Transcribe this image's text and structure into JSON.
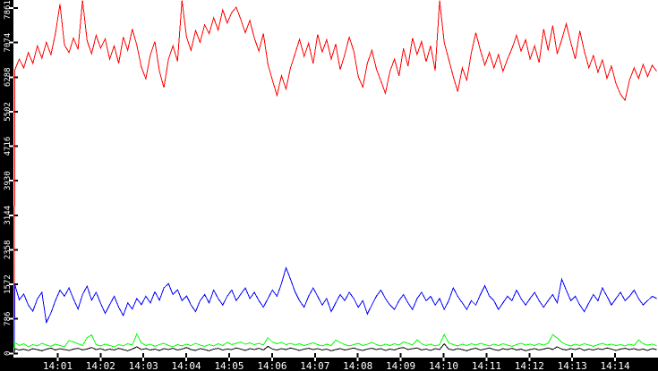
{
  "chart_data": {
    "type": "line",
    "title": "",
    "legend": false,
    "grid": false,
    "background_color": "#ffffff",
    "axis_bar_color": "#000000",
    "axis_text_color": "#ffffff",
    "x_axis": {
      "tick_labels": [
        "14:01",
        "14:02",
        "14:03",
        "14:04",
        "14:05",
        "14:06",
        "14:07",
        "14:08",
        "14:09",
        "14:10",
        "14:11",
        "14:12",
        "14:13",
        "14:14"
      ],
      "implied_range": [
        "14:00",
        "14:15"
      ]
    },
    "y_axis": {
      "tick_labels": [
        "0",
        "786",
        "1572",
        "2358",
        "3144",
        "3930",
        "4716",
        "5502",
        "6288",
        "7074",
        "7861"
      ],
      "tick_values": [
        0,
        786,
        1572,
        2358,
        3144,
        3930,
        4716,
        5502,
        6288,
        7074,
        7861
      ],
      "range": [
        0,
        8050
      ]
    },
    "series": [
      {
        "name": "red",
        "color": "#ff0000",
        "values": [
          0,
          6450,
          6700,
          6500,
          6850,
          6600,
          7000,
          6720,
          7080,
          6800,
          7280,
          7950,
          7020,
          6850,
          7180,
          6920,
          8040,
          7120,
          6820,
          7240,
          6950,
          7160,
          6700,
          7000,
          6600,
          7200,
          6900,
          7380,
          7020,
          6520,
          6250,
          6800,
          7100,
          6420,
          6050,
          6700,
          7000,
          6650,
          8040,
          7200,
          6900,
          7350,
          7080,
          7480,
          7280,
          7640,
          7360,
          7820,
          7520,
          7760,
          7880,
          7600,
          7300,
          7580,
          7180,
          6880,
          7280,
          6580,
          6220,
          5870,
          6320,
          6020,
          6500,
          6820,
          7150,
          6760,
          7060,
          6600,
          7260,
          6860,
          7140,
          6700,
          7040,
          6460,
          6800,
          7200,
          6880,
          6300,
          6060,
          6600,
          6900,
          6480,
          6200,
          5920,
          6420,
          6700,
          6320,
          6940,
          6540,
          7180,
          6800,
          7100,
          6640,
          7000,
          6440,
          8040,
          7080,
          6700,
          6300,
          5960,
          6500,
          6220,
          6840,
          7300,
          6900,
          6560,
          6850,
          6500,
          6800,
          6420,
          6700,
          6940,
          7240,
          6880,
          7140,
          6700,
          7000,
          6620,
          7380,
          6900,
          7460,
          6820,
          7140,
          7500,
          7080,
          6700,
          7340,
          6880,
          6500,
          6780,
          6400,
          6680,
          6260,
          6540,
          6140,
          5900,
          5760,
          6220,
          6500,
          6260,
          6580,
          6300,
          6560,
          6420
        ]
      },
      {
        "name": "blue",
        "color": "#0000ff",
        "values": [
          0,
          1570,
          1220,
          1350,
          1100,
          960,
          1240,
          1390,
          700,
          920,
          1200,
          1440,
          1300,
          1490,
          1240,
          1010,
          1340,
          1530,
          1210,
          1390,
          1140,
          910,
          1110,
          1300,
          1050,
          860,
          1150,
          1010,
          1250,
          1110,
          1300,
          1150,
          1400,
          1210,
          1490,
          1590,
          1340,
          1450,
          1200,
          1310,
          1100,
          950,
          1200,
          1340,
          1150,
          1440,
          1250,
          1100,
          1300,
          1440,
          1200,
          1350,
          1490,
          1250,
          1390,
          1200,
          1050,
          1250,
          1440,
          1300,
          1590,
          1950,
          1690,
          1400,
          1200,
          1050,
          1300,
          1490,
          1300,
          1100,
          1250,
          950,
          1150,
          1340,
          1200,
          1390,
          1250,
          1050,
          1200,
          900,
          1100,
          1300,
          1440,
          1250,
          1100,
          1000,
          1200,
          1340,
          1150,
          1000,
          1250,
          1390,
          1200,
          1300,
          1100,
          1250,
          1000,
          1200,
          1490,
          1300,
          1150,
          1000,
          1200,
          1100,
          1340,
          1540,
          1300,
          1200,
          1000,
          1150,
          1300,
          1200,
          1440,
          1250,
          1100,
          1250,
          1390,
          1200,
          1050,
          1200,
          1340,
          1150,
          1690,
          1440,
          1200,
          1300,
          1100,
          950,
          1150,
          1340,
          1200,
          1490,
          1300,
          1100,
          1250,
          1390,
          1200,
          1300,
          1440,
          1250,
          1100,
          1200,
          1300,
          1250
        ]
      },
      {
        "name": "green",
        "color": "#00ff00",
        "values": [
          0,
          250,
          180,
          220,
          150,
          200,
          170,
          230,
          190,
          160,
          210,
          180,
          150,
          290,
          260,
          220,
          180,
          360,
          420,
          200,
          170,
          210,
          180,
          150,
          200,
          170,
          220,
          190,
          440,
          240,
          180,
          210,
          160,
          200,
          230,
          180,
          150,
          200,
          170,
          210,
          180,
          230,
          190,
          160,
          200,
          170,
          220,
          180,
          250,
          200,
          230,
          260,
          210,
          240,
          200,
          230,
          190,
          360,
          260,
          220,
          250,
          200,
          230,
          190,
          220,
          180,
          210,
          240,
          200,
          170,
          210,
          180,
          300,
          250,
          200,
          170,
          200,
          230,
          180,
          210,
          250,
          200,
          170,
          210,
          180,
          220,
          190,
          260,
          230,
          190,
          310,
          220,
          180,
          210,
          170,
          200,
          430,
          240,
          200,
          170,
          210,
          180,
          220,
          190,
          230,
          200,
          170,
          210,
          180,
          220,
          190,
          160,
          200,
          230,
          190,
          210,
          180,
          220,
          190,
          230,
          430,
          350,
          250,
          200,
          170,
          210,
          180,
          220,
          190,
          160,
          200,
          230,
          190,
          210,
          180,
          200,
          170,
          210,
          180,
          310,
          220,
          190,
          210,
          180
        ]
      },
      {
        "name": "black",
        "color": "#000000",
        "values": [
          0,
          110,
          75,
          95,
          65,
          105,
          85,
          60,
          95,
          120,
          78,
          105,
          88,
          68,
          98,
          115,
          80,
          100,
          135,
          88,
          108,
          70,
          98,
          78,
          115,
          88,
          60,
          98,
          150,
          88,
          108,
          78,
          98,
          68,
          108,
          88,
          115,
          78,
          98,
          135,
          88,
          68,
          108,
          88,
          60,
          98,
          115,
          78,
          98,
          88,
          125,
          98,
          68,
          108,
          88,
          115,
          78,
          160,
          98,
          78,
          108,
          88,
          125,
          98,
          68,
          98,
          115,
          88,
          108,
          78,
          98,
          60,
          88,
          108,
          78,
          98,
          125,
          88,
          68,
          98,
          115,
          88,
          108,
          68,
          98,
          78,
          115,
          135,
          88,
          108,
          125,
          78,
          98,
          68,
          108,
          88,
          220,
          98,
          78,
          108,
          88,
          60,
          98,
          115,
          78,
          98,
          125,
          88,
          68,
          108,
          88,
          115,
          78,
          98,
          60,
          88,
          108,
          78,
          98,
          125,
          88,
          150,
          98,
          78,
          108,
          88,
          115,
          68,
          98,
          78,
          108,
          88,
          125,
          98,
          68,
          98,
          115,
          88,
          108,
          78,
          98,
          68,
          108,
          88
        ]
      }
    ]
  }
}
